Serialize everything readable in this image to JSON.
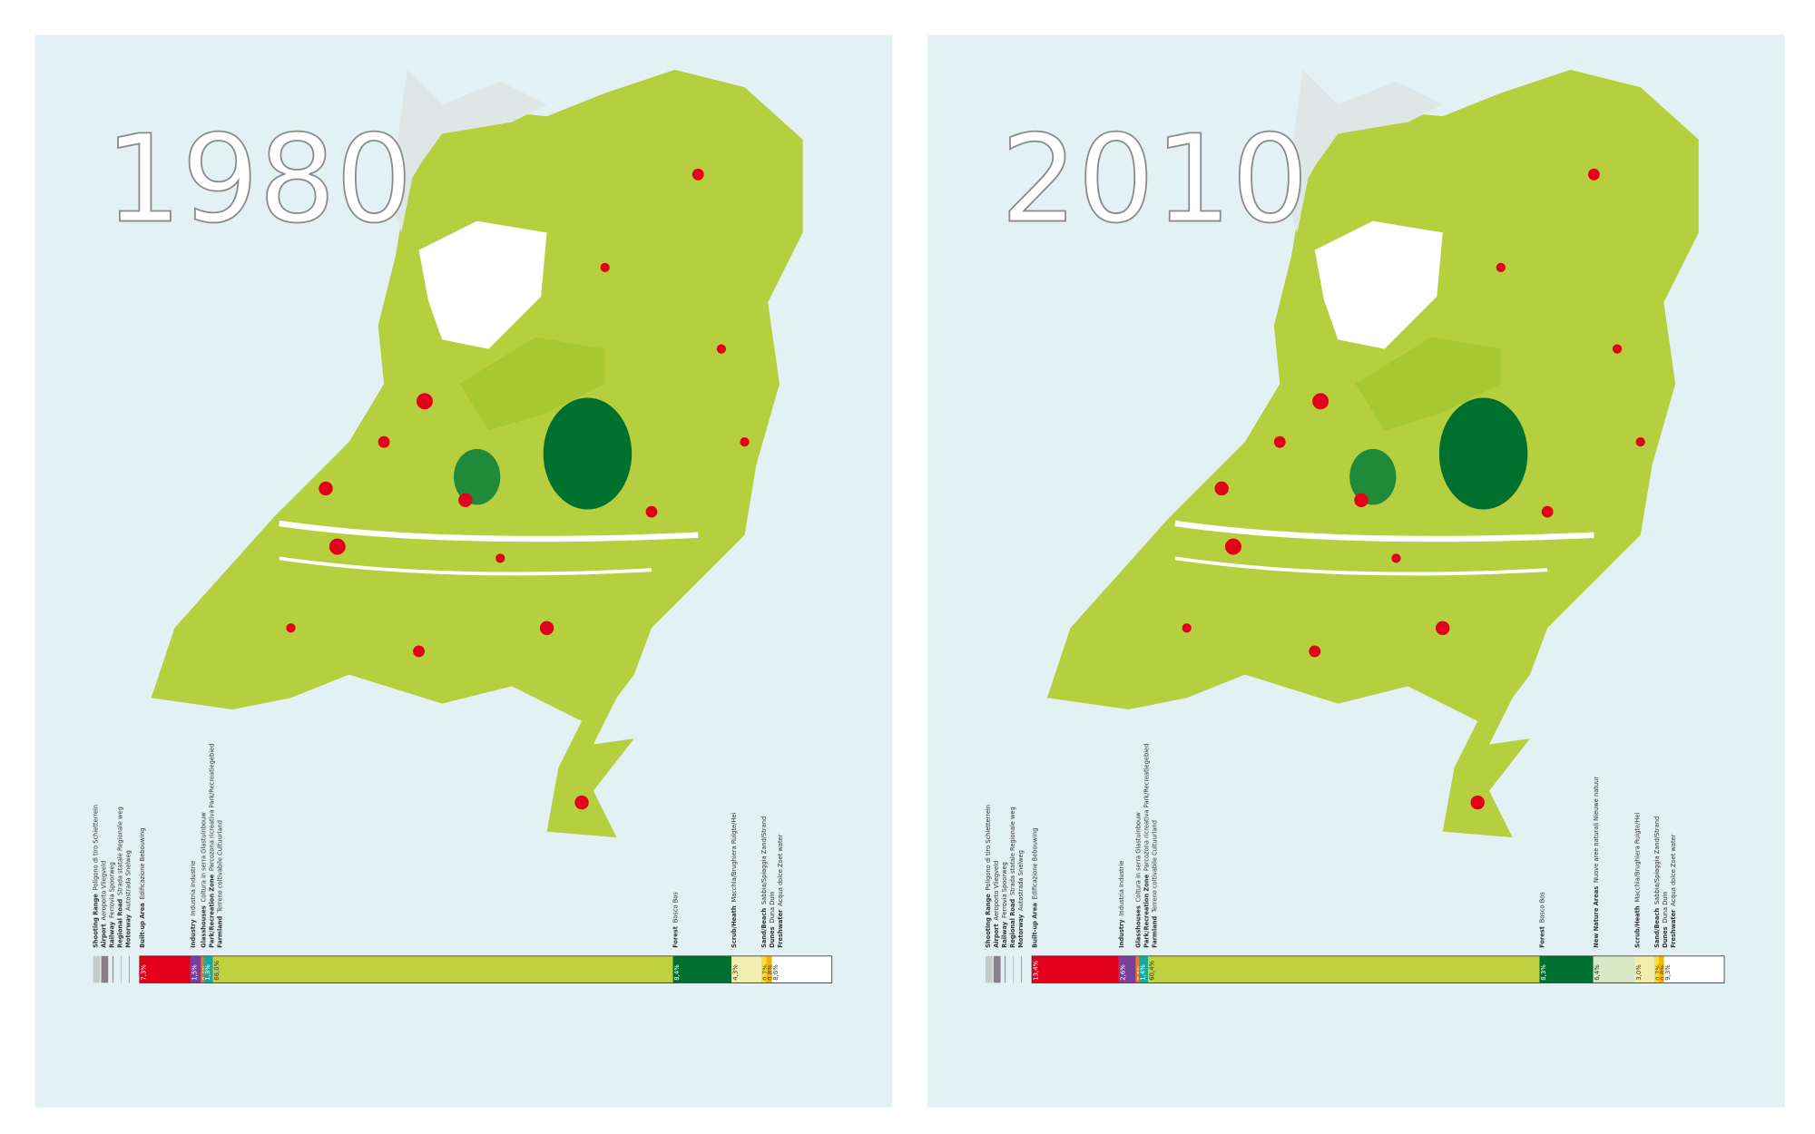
{
  "panels": [
    {
      "year": "1980",
      "line_features": [
        {
          "name": "Shooting Range",
          "translation": "Poligono di tiro  Schietterrein",
          "color": "#c5ccc8"
        },
        {
          "name": "Airport",
          "translation": "Aeroporto  Vliegveld",
          "color": "#8a7f86"
        },
        {
          "name": "Railway",
          "translation": "Ferrovia  Spoorweg",
          "color": "#666666"
        },
        {
          "name": "Regional Road",
          "translation": "Strada statale  Regionale weg",
          "color": "#b0b0b0"
        },
        {
          "name": "Motorway",
          "translation": "Autostrada  Snelweg",
          "color": "#8c8c8c"
        }
      ],
      "land_use": [
        {
          "name": "Built-up Area",
          "translation": "Edificazione  Bebouwing",
          "color": "#e2001a",
          "value": 7.3,
          "value_label": "7,3%"
        },
        {
          "name": "Industry",
          "translation": "Industria  Industrie",
          "color": "#7b3f98",
          "value": 1.5,
          "value_label": "1,5%"
        },
        {
          "name": "Glasshouses",
          "translation": "Coltura in serra  Glastuinbouw",
          "color": "#e87722",
          "value": 0.4,
          "value_label": "0,4%"
        },
        {
          "name": "Park/Recreation Zone",
          "translation": "Parcozona ricreativa  Park/Recreatiegebied",
          "color": "#1aa9a0",
          "value": 1.3,
          "value_label": "1,3%"
        },
        {
          "name": "Farmland",
          "translation": "Terreno coltivabile  Cultuurland",
          "color": "#c0d140",
          "value": 66.0,
          "value_label": "66,0%"
        },
        {
          "name": "Forest",
          "translation": "Bosco  Bos",
          "color": "#00702e",
          "value": 8.4,
          "value_label": "8,4%"
        },
        {
          "name": "Scrub/Heath",
          "translation": "Macchia/Brughiera  Ruigte/Hei",
          "color": "#f2eeb0",
          "value": 4.3,
          "value_label": "4,3%"
        },
        {
          "name": "Sand/Beach",
          "translation": "Sabbia/Spiaggia  Zand/Strand",
          "color": "#f5df3a",
          "value": 0.7,
          "value_label": "0,7%"
        },
        {
          "name": "Dunes",
          "translation": "Duna  Duin",
          "color": "#f5b800",
          "value": 0.8,
          "value_label": "0,8%"
        },
        {
          "name": "Freshwater",
          "translation": "Acqua dolce  Zoet water",
          "color": "#ffffff",
          "value": 8.6,
          "value_label": "8,6%"
        }
      ]
    },
    {
      "year": "2010",
      "line_features": [
        {
          "name": "Shooting Range",
          "translation": "Poligono di tiro  Schietterrein",
          "color": "#c5ccc8"
        },
        {
          "name": "Airport",
          "translation": "Aeroporto  Vliegveld",
          "color": "#8a7f86"
        },
        {
          "name": "Railway",
          "translation": "Ferrovia  Spoorweg",
          "color": "#666666"
        },
        {
          "name": "Regional Road",
          "translation": "Strada statale  Regionale weg",
          "color": "#b0b0b0"
        },
        {
          "name": "Motorway",
          "translation": "Autostrada  Snelweg",
          "color": "#8c8c8c"
        }
      ],
      "land_use": [
        {
          "name": "Built-up Area",
          "translation": "Edificazione  Bebouwing",
          "color": "#e2001a",
          "value": 13.4,
          "value_label": "13,4%"
        },
        {
          "name": "Industry",
          "translation": "Industria  Industrie",
          "color": "#7b3f98",
          "value": 2.6,
          "value_label": "2,6%"
        },
        {
          "name": "Glasshouses",
          "translation": "Coltura in serra  Glastuinbouw",
          "color": "#e87722",
          "value": 0.5,
          "value_label": "0,5%"
        },
        {
          "name": "Park/Recreation Zone",
          "translation": "Parcozona ricreativa  Park/Recreatiegebied",
          "color": "#1aa9a0",
          "value": 1.4,
          "value_label": "1,4%"
        },
        {
          "name": "Farmland",
          "translation": "Terreno coltivabile  Cultuurland",
          "color": "#c0d140",
          "value": 60.4,
          "value_label": "60,4%"
        },
        {
          "name": "Forest",
          "translation": "Bosco  Bos",
          "color": "#00702e",
          "value": 8.3,
          "value_label": "8,3%"
        },
        {
          "name": "New Nature Areas",
          "translation": "Nuove aree naturali  Nieuwe natuur",
          "color": "#d8e8c4",
          "value": 6.4,
          "value_label": "6,4%"
        },
        {
          "name": "Scrub/Heath",
          "translation": "Macchia/Brughiera  Ruigte/Hei",
          "color": "#f2eeb0",
          "value": 3.0,
          "value_label": "3,0%"
        },
        {
          "name": "Sand/Beach",
          "translation": "Sabbia/Spiaggia  Zand/Strand",
          "color": "#f5df3a",
          "value": 0.7,
          "value_label": "0,7%"
        },
        {
          "name": "Dunes",
          "translation": "Duna  Duin",
          "color": "#f5b800",
          "value": 0.8,
          "value_label": "0,8%"
        },
        {
          "name": "Freshwater",
          "translation": "Acqua dolce  Zoet water",
          "color": "#ffffff",
          "value": 9.3,
          "value_label": "9,3%"
        }
      ]
    }
  ]
}
